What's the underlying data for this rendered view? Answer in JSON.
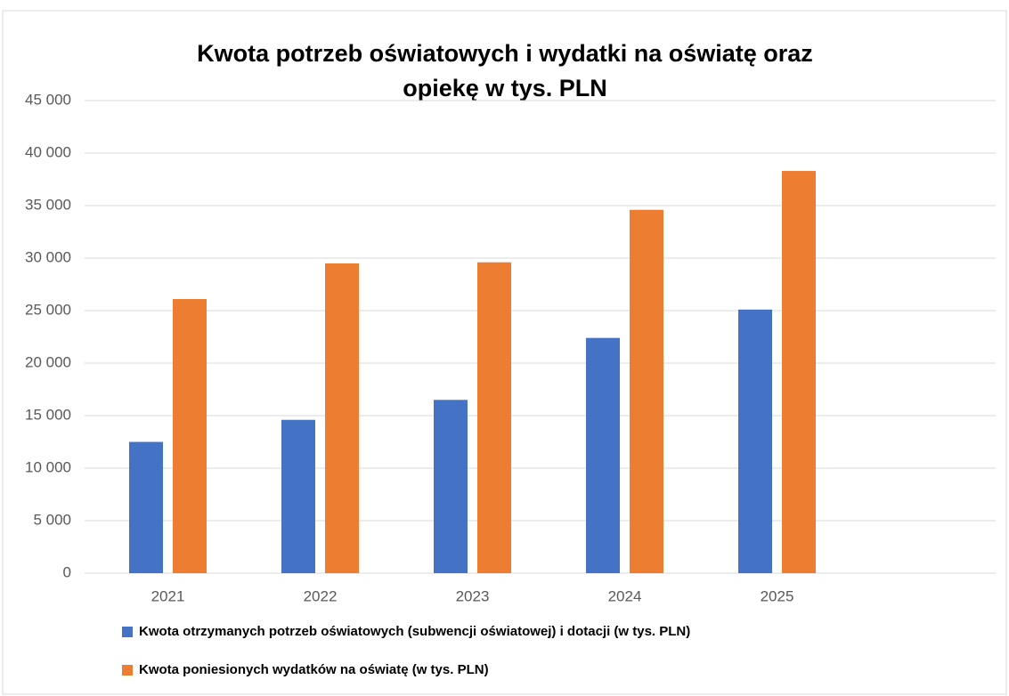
{
  "chart_data": {
    "type": "bar",
    "title": [
      "Kwota potrzeb oświatowych i wydatki na oświatę oraz",
      "opiekę w tys. PLN"
    ],
    "categories": [
      "2021",
      "2022",
      "2023",
      "2024",
      "2025",
      null
    ],
    "series": [
      {
        "name": "Kwota otrzymanych potrzeb oświatowych (subwencji oświatowej) i dotacji (w tys. PLN)",
        "color": "#4472c4",
        "values": [
          12500,
          14600,
          16500,
          22400,
          25100,
          null
        ]
      },
      {
        "name": "Kwota poniesionych wydatków na oświatę (w tys. PLN)",
        "color": "#ed7d31",
        "values": [
          26100,
          29500,
          29600,
          34600,
          38300,
          null
        ]
      }
    ],
    "ylim": [
      0,
      45000
    ],
    "yticks": [
      0,
      {
        "value": 5000,
        "label": "5 000"
      },
      {
        "value": 10000,
        "label": "10 000"
      },
      {
        "value": 15000,
        "label": "15 000"
      },
      {
        "value": 20000,
        "label": "20 000"
      },
      {
        "value": 25000,
        "label": "25 000"
      },
      {
        "value": 30000,
        "label": "30 000"
      },
      {
        "value": 35000,
        "label": "35 000"
      },
      {
        "value": 40000,
        "label": "40 000"
      },
      {
        "value": 45000,
        "label": "45 000"
      }
    ],
    "grid": true,
    "legend": "bottom"
  }
}
